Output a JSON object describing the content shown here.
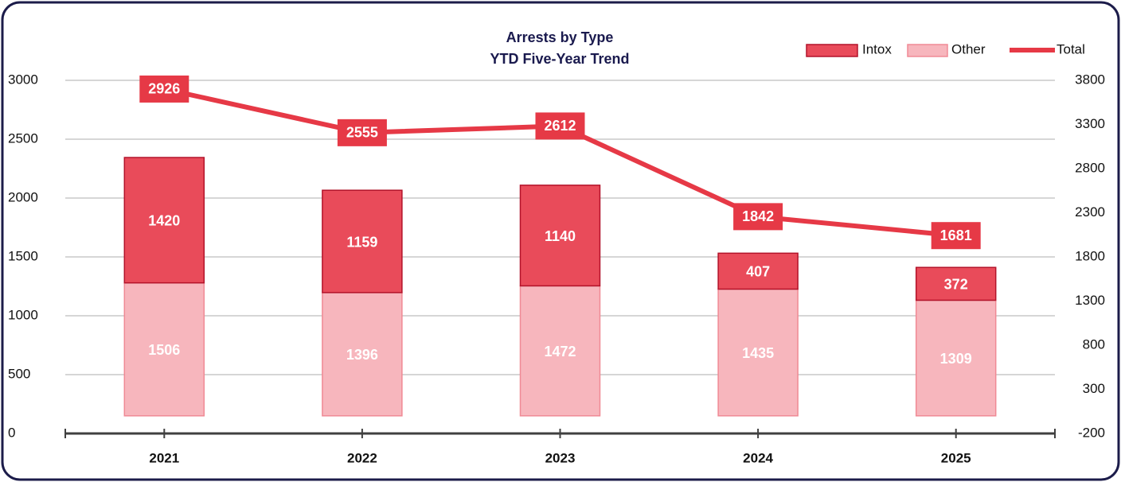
{
  "chart_data": {
    "type": "bar",
    "title": "Arrests by Type",
    "subtitle": "YTD Five-Year Trend",
    "categories": [
      "2021",
      "2022",
      "2023",
      "2024",
      "2025"
    ],
    "series": [
      {
        "name": "Other",
        "type": "bar",
        "axis": "y2",
        "color": "#f7b6bd",
        "edge_color": "#f08a95",
        "values": [
          1506,
          1396,
          1472,
          1435,
          1309
        ]
      },
      {
        "name": "Intox",
        "type": "bar",
        "axis": "y2",
        "color": "#e94b5a",
        "edge_color": "#b3132a",
        "values": [
          1420,
          1159,
          1140,
          407,
          372
        ]
      },
      {
        "name": "Total",
        "type": "line",
        "axis": "y",
        "color": "#e63946",
        "values": [
          2926,
          2555,
          2612,
          1842,
          1681
        ]
      }
    ],
    "ylim": [
      0,
      3000
    ],
    "yticks": [
      0,
      500,
      1000,
      1500,
      2000,
      2500,
      3000
    ],
    "y2lim": [
      -200,
      3800
    ],
    "y2ticks": [
      -200,
      300,
      800,
      1300,
      1800,
      2300,
      2800,
      3300,
      3800
    ],
    "grid": true,
    "stacked": true,
    "legend": "top-right"
  }
}
